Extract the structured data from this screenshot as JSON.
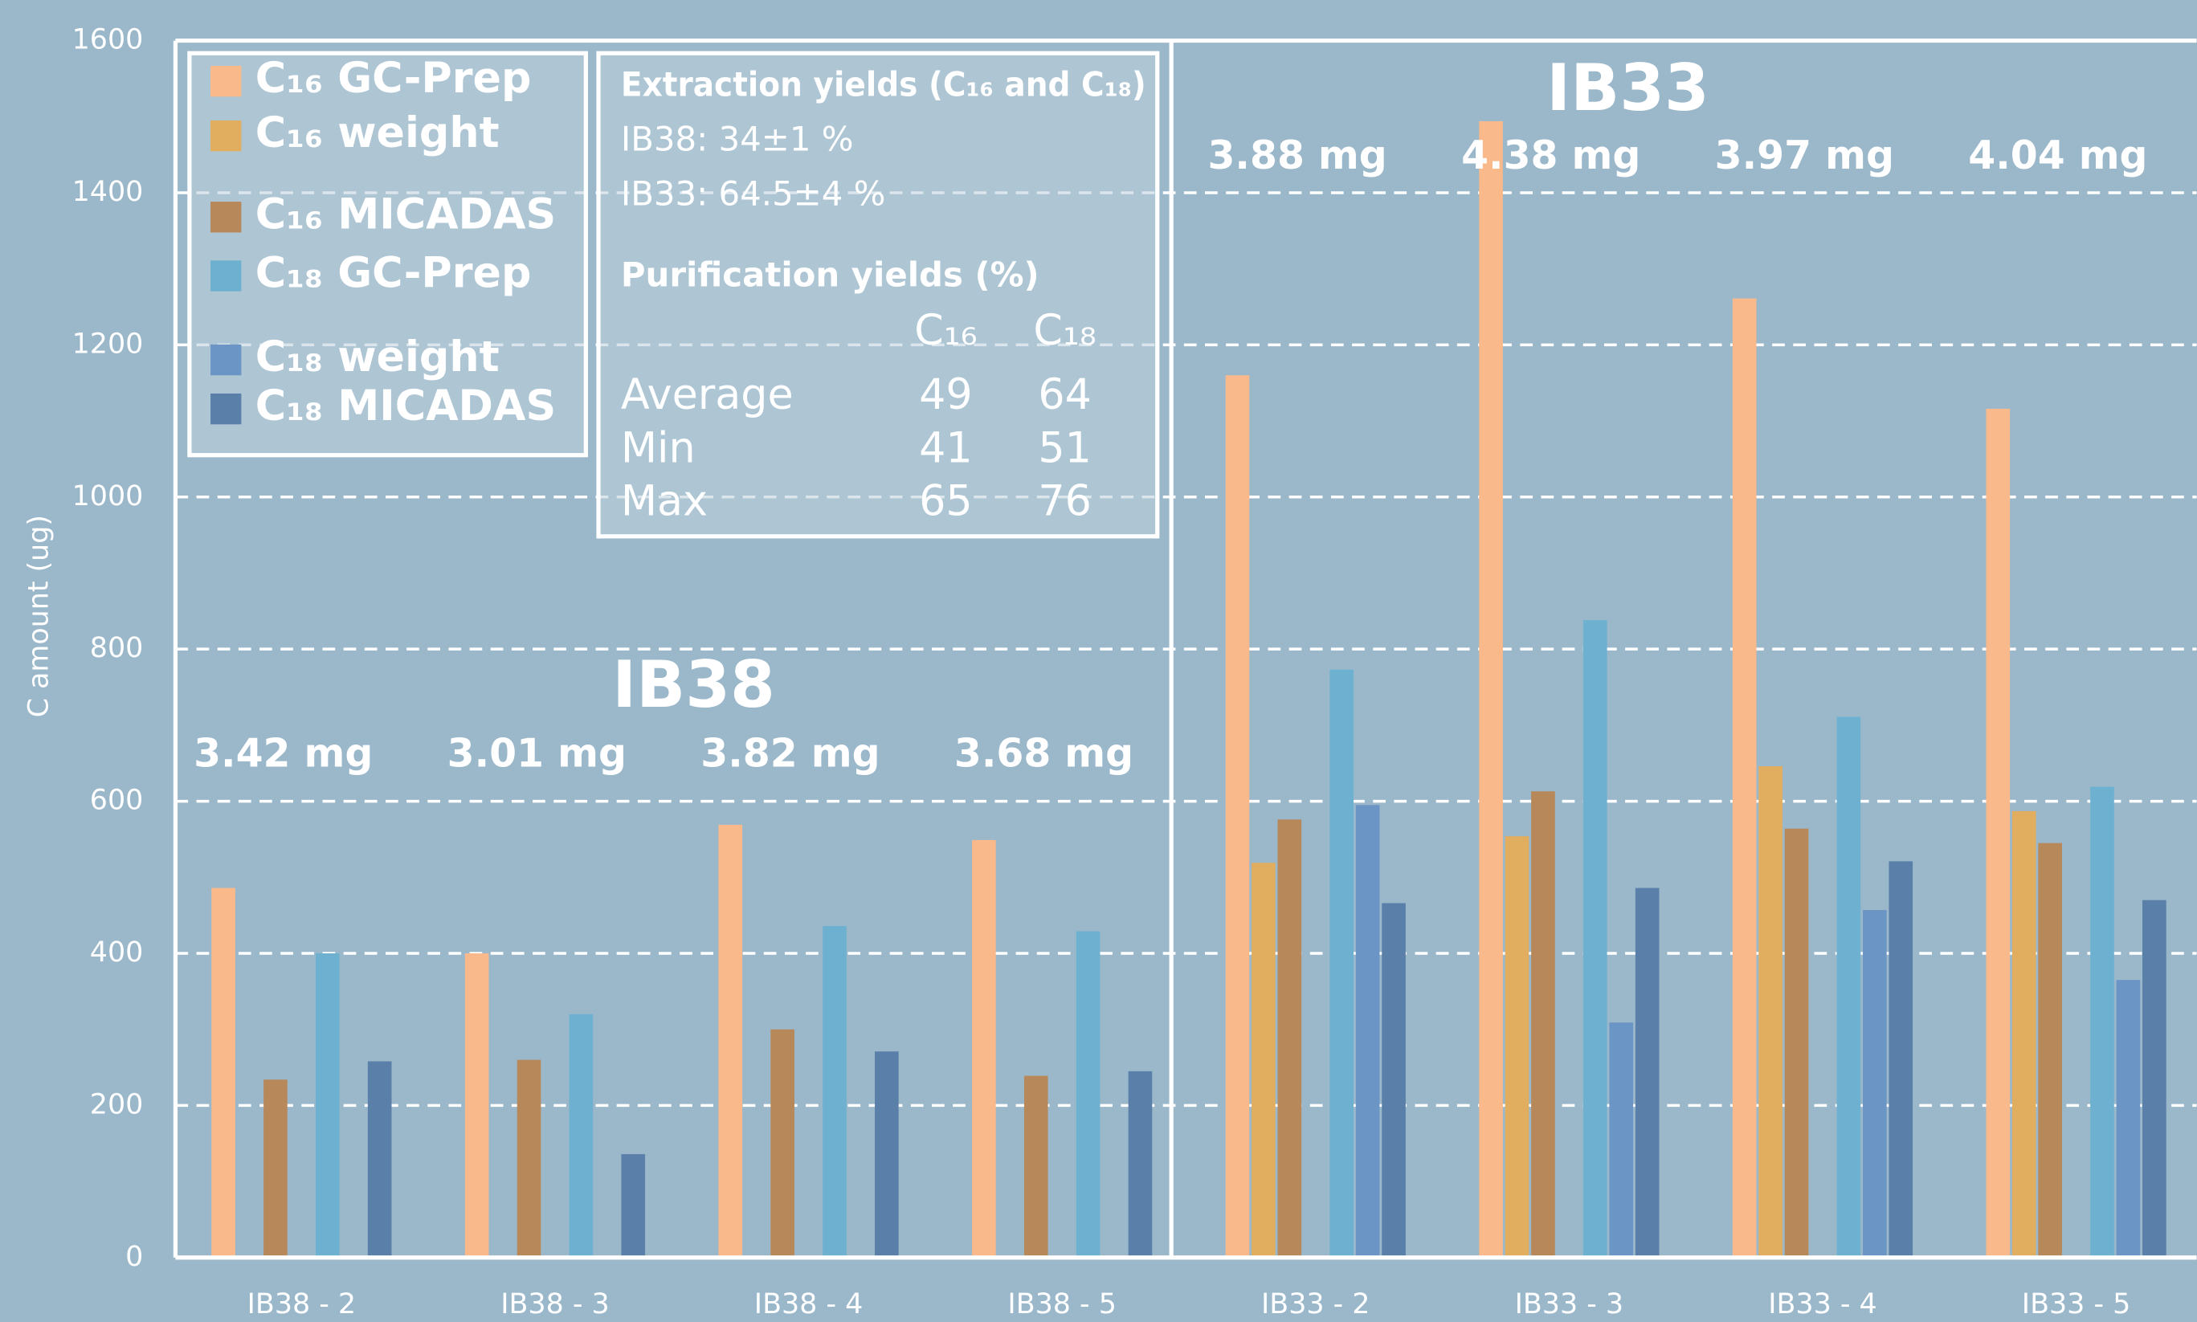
{
  "chart_data": {
    "type": "bar",
    "y_label": "C amount (ug)",
    "categories": [
      "IB38 - 2",
      "IB38 - 3",
      "IB38 - 4",
      "IB38 - 5",
      "IB33 - 2",
      "IB33 - 3",
      "IB33 - 4",
      "IB33 - 5"
    ],
    "series": [
      {
        "name": "C₁₆ GC-Prep",
        "color": "#f9b98b",
        "values": [
          486,
          400,
          569,
          549,
          1160,
          1494,
          1261,
          1116
        ]
      },
      {
        "name": "C₁₆ weight",
        "color": "#e1ad5f",
        "values": [
          null,
          null,
          null,
          null,
          519,
          554,
          646,
          587
        ]
      },
      {
        "name": "C₁₆ MICADAS",
        "color": "#b7885a",
        "values": [
          234,
          260,
          300,
          239,
          576,
          613,
          564,
          545
        ]
      },
      {
        "name": "C₁₈ GC-Prep",
        "color": "#6eb0cf",
        "values": [
          400,
          320,
          436,
          429,
          773,
          838,
          711,
          619
        ]
      },
      {
        "name": "C₁₈ weight",
        "color": "#6b95c5",
        "values": [
          null,
          null,
          null,
          null,
          595,
          309,
          457,
          365
        ]
      },
      {
        "name": "C₁₈ MICADAS",
        "color": "#5a7fa9",
        "values": [
          258,
          136,
          271,
          245,
          466,
          486,
          521,
          470
        ]
      }
    ],
    "ylim": [
      0,
      1600
    ],
    "yticks": [
      0,
      200,
      400,
      600,
      800,
      1000,
      1200,
      1400,
      1600
    ],
    "grid": true,
    "groups": [
      "IB38",
      "IB33"
    ],
    "sample_masses": [
      "3.42 mg",
      "3.01 mg",
      "3.82 mg",
      "3.68 mg",
      "3.88 mg",
      "4.38 mg",
      "3.97 mg",
      "4.04 mg"
    ],
    "info": {
      "extraction_title": "Extraction yields (C₁₆ and C₁₈)",
      "extraction_lines": [
        "IB38: 34±1 %",
        "IB33: 64.5±4 %"
      ],
      "purification_title": "Purification yields (%)",
      "columns": [
        "C₁₆",
        "C₁₈"
      ],
      "rows": [
        [
          "Average",
          "49",
          "64"
        ],
        [
          "Min",
          "41",
          "51"
        ],
        [
          "Max",
          "65",
          "76"
        ]
      ]
    }
  }
}
